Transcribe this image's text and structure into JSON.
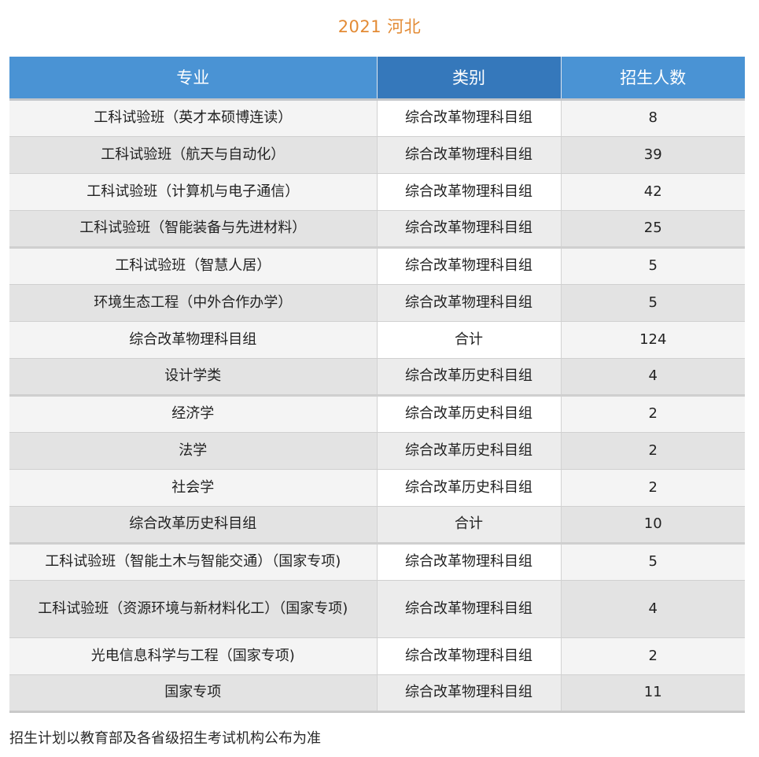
{
  "title": "2021 河北",
  "table": {
    "headers": [
      "专业",
      "类别",
      "招生人数"
    ],
    "rows": [
      {
        "major": "工科试验班（英才本硕博连读）",
        "category": "综合改革物理科目组",
        "count": "8"
      },
      {
        "major": "工科试验班（航天与自动化）",
        "category": "综合改革物理科目组",
        "count": "39"
      },
      {
        "major": "工科试验班（计算机与电子通信）",
        "category": "综合改革物理科目组",
        "count": "42"
      },
      {
        "major": "工科试验班（智能装备与先进材料）",
        "category": "综合改革物理科目组",
        "count": "25"
      },
      {
        "major": "工科试验班（智慧人居）",
        "category": "综合改革物理科目组",
        "count": "5"
      },
      {
        "major": "环境生态工程（中外合作办学）",
        "category": "综合改革物理科目组",
        "count": "5"
      },
      {
        "major": "综合改革物理科目组",
        "category": "合计",
        "count": "124"
      },
      {
        "major": "设计学类",
        "category": "综合改革历史科目组",
        "count": "4"
      },
      {
        "major": "经济学",
        "category": "综合改革历史科目组",
        "count": "2"
      },
      {
        "major": "法学",
        "category": "综合改革历史科目组",
        "count": "2"
      },
      {
        "major": "社会学",
        "category": "综合改革历史科目组",
        "count": "2"
      },
      {
        "major": "综合改革历史科目组",
        "category": "合计",
        "count": "10"
      },
      {
        "major": "工科试验班（智能土木与智能交通）（国家专项)",
        "category": "综合改革物理科目组",
        "count": "5"
      },
      {
        "major": "工科试验班（资源环境与新材料化工）（国家专项)",
        "category": "综合改革物理科目组",
        "count": "4"
      },
      {
        "major": "光电信息科学与工程（国家专项)",
        "category": "综合改革物理科目组",
        "count": "2"
      },
      {
        "major": "国家专项",
        "category": "综合改革物理科目组",
        "count": "11"
      }
    ]
  },
  "footer_note": "招生计划以教育部及各省级招生考试机构公布为准",
  "colors": {
    "title": "#e38b35",
    "header_blue": "#4a93d4",
    "header_blue_dark": "#3578bb"
  }
}
